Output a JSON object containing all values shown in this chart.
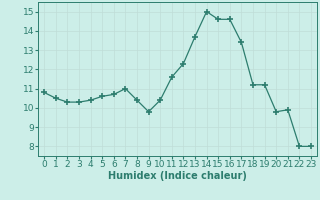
{
  "x": [
    0,
    1,
    2,
    3,
    4,
    5,
    6,
    7,
    8,
    9,
    10,
    11,
    12,
    13,
    14,
    15,
    16,
    17,
    18,
    19,
    20,
    21,
    22,
    23
  ],
  "y": [
    10.8,
    10.5,
    10.3,
    10.3,
    10.4,
    10.6,
    10.7,
    11.0,
    10.4,
    9.8,
    10.4,
    11.6,
    12.3,
    13.7,
    15.0,
    14.6,
    14.6,
    13.4,
    11.2,
    11.2,
    9.8,
    9.9,
    8.0,
    8.0
  ],
  "line_color": "#2d7d6e",
  "marker": "D",
  "marker_size": 2.5,
  "bg_color": "#cceee8",
  "grid_color": "#c0ddd8",
  "tick_color": "#2d7d6e",
  "label_color": "#2d7d6e",
  "xlabel": "Humidex (Indice chaleur)",
  "ylim": [
    7.5,
    15.5
  ],
  "xlim": [
    -0.5,
    23.5
  ],
  "yticks": [
    8,
    9,
    10,
    11,
    12,
    13,
    14,
    15
  ],
  "xticks": [
    0,
    1,
    2,
    3,
    4,
    5,
    6,
    7,
    8,
    9,
    10,
    11,
    12,
    13,
    14,
    15,
    16,
    17,
    18,
    19,
    20,
    21,
    22,
    23
  ],
  "xlabel_fontsize": 7,
  "tick_fontsize": 6.5
}
